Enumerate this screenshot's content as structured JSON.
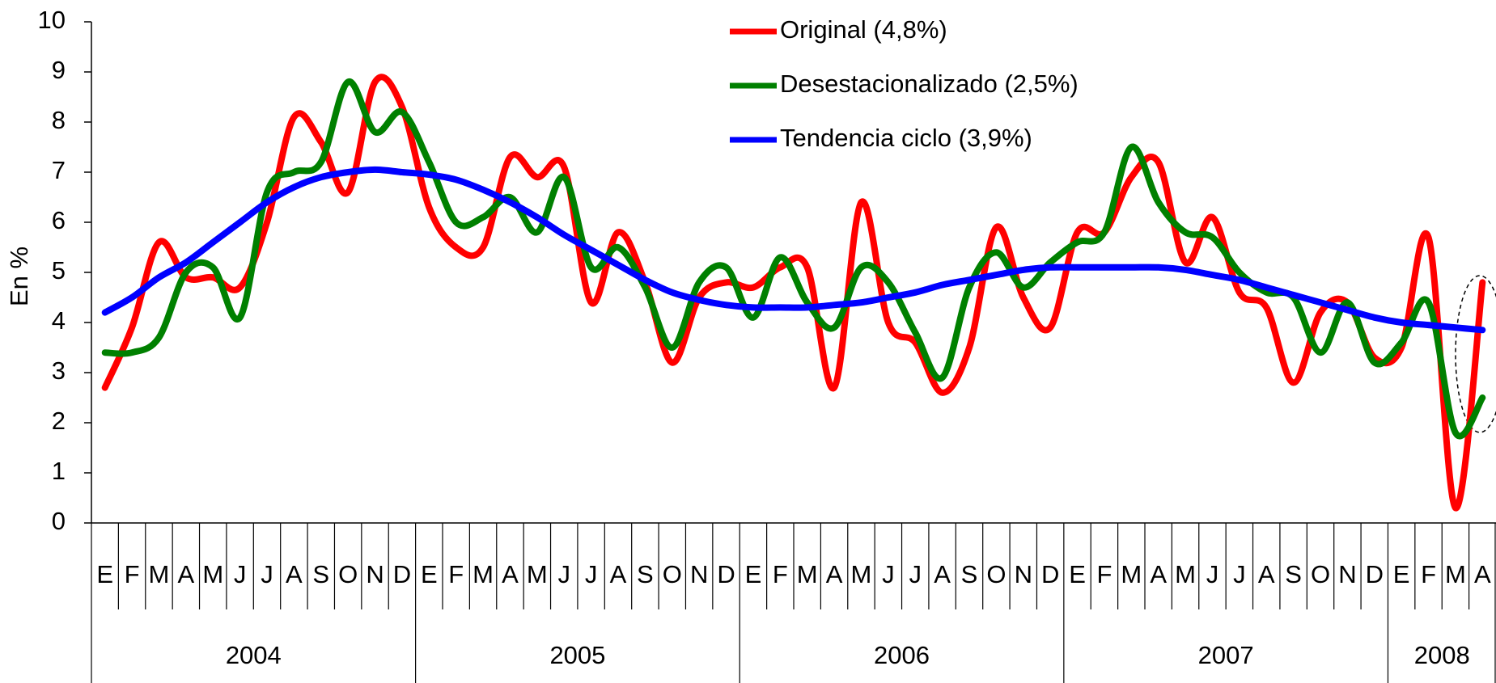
{
  "chart_data": {
    "type": "line",
    "y_label": "En %",
    "categories": [
      "E",
      "F",
      "M",
      "A",
      "M",
      "J",
      "J",
      "A",
      "S",
      "O",
      "N",
      "D",
      "E",
      "F",
      "M",
      "A",
      "M",
      "J",
      "J",
      "A",
      "S",
      "O",
      "N",
      "D",
      "E",
      "F",
      "M",
      "A",
      "M",
      "J",
      "J",
      "A",
      "S",
      "O",
      "N",
      "D",
      "E",
      "F",
      "M",
      "A",
      "M",
      "J",
      "J",
      "A",
      "S",
      "O",
      "N",
      "D",
      "E",
      "F",
      "M",
      "A"
    ],
    "years": [
      "2004",
      "2005",
      "2006",
      "2007",
      "2008"
    ],
    "ylim": [
      0,
      10
    ],
    "yticks": [
      0,
      1,
      2,
      3,
      4,
      5,
      6,
      7,
      8,
      9,
      10
    ],
    "series": [
      {
        "name": "Original (4,8%)",
        "color": "#ff0000",
        "values": [
          2.7,
          3.9,
          5.6,
          4.9,
          4.9,
          4.7,
          6.0,
          8.1,
          7.6,
          6.6,
          8.8,
          8.3,
          6.3,
          5.5,
          5.5,
          7.3,
          6.9,
          7.1,
          4.4,
          5.8,
          4.8,
          3.2,
          4.5,
          4.8,
          4.7,
          5.1,
          5.1,
          2.7,
          6.4,
          4.0,
          3.6,
          2.6,
          3.5,
          5.9,
          4.5,
          3.9,
          5.8,
          5.8,
          6.9,
          7.2,
          5.2,
          6.1,
          4.6,
          4.3,
          2.8,
          4.2,
          4.4,
          3.3,
          3.5,
          5.7,
          0.3,
          4.8
        ]
      },
      {
        "name": "Desestacionalizado  (2,5%)",
        "color": "#008000",
        "values": [
          3.4,
          3.4,
          3.7,
          5.0,
          5.1,
          4.1,
          6.6,
          7.0,
          7.2,
          8.8,
          7.8,
          8.2,
          7.2,
          6.0,
          6.1,
          6.5,
          5.8,
          6.9,
          5.1,
          5.5,
          4.7,
          3.5,
          4.8,
          5.1,
          4.1,
          5.3,
          4.4,
          3.9,
          5.1,
          4.8,
          3.8,
          2.9,
          4.7,
          5.4,
          4.7,
          5.2,
          5.6,
          5.8,
          7.5,
          6.4,
          5.8,
          5.7,
          5.0,
          4.6,
          4.5,
          3.4,
          4.4,
          3.2,
          3.6,
          4.4,
          1.8,
          2.5
        ]
      },
      {
        "name": "Tendencia ciclo (3,9%)",
        "color": "#0000ff",
        "values": [
          4.2,
          4.5,
          4.9,
          5.2,
          5.6,
          6.0,
          6.4,
          6.7,
          6.9,
          7.0,
          7.05,
          7.0,
          6.95,
          6.85,
          6.65,
          6.4,
          6.1,
          5.75,
          5.45,
          5.15,
          4.85,
          4.6,
          4.45,
          4.35,
          4.3,
          4.3,
          4.3,
          4.35,
          4.4,
          4.5,
          4.6,
          4.75,
          4.85,
          4.95,
          5.05,
          5.1,
          5.1,
          5.1,
          5.1,
          5.1,
          5.05,
          4.95,
          4.85,
          4.7,
          4.55,
          4.4,
          4.25,
          4.1,
          4.0,
          3.95,
          3.9,
          3.85
        ]
      }
    ]
  }
}
